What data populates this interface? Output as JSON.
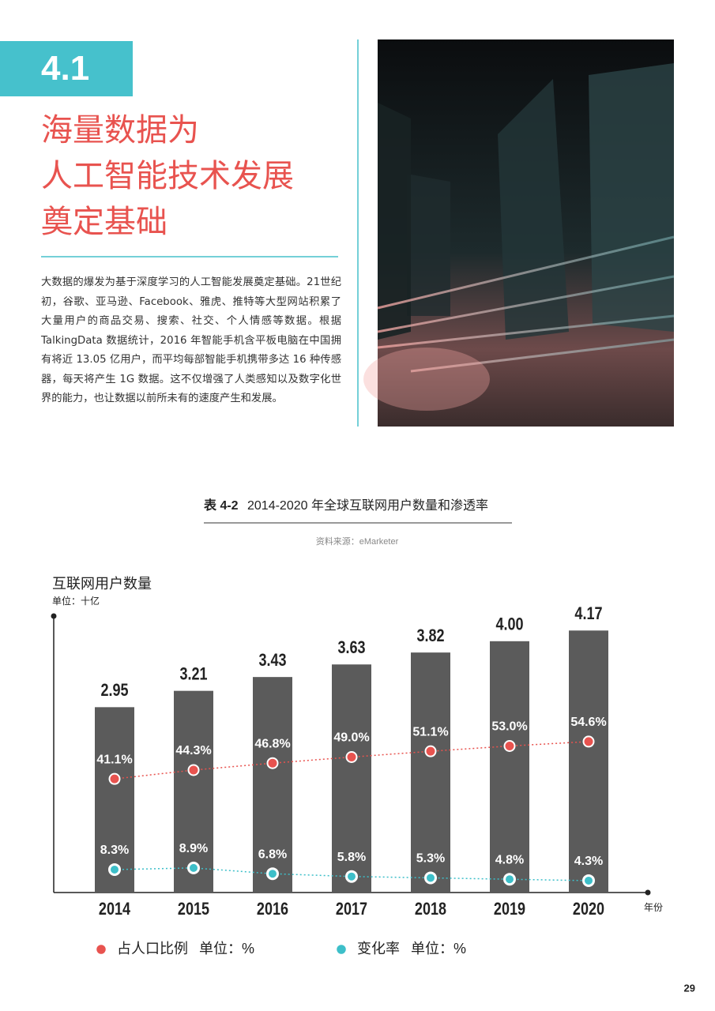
{
  "header": {
    "section": "4.1",
    "title_lines": [
      "海量数据为",
      "人工智能技术发展",
      "奠定基础"
    ]
  },
  "paragraph": "大数据的爆发为基于深度学习的人工智能发展奠定基础。21世纪初，谷歌、亚马逊、Facebook、雅虎、推特等大型网站积累了大量用户的商品交易、搜索、社交、个人情感等数据。根据 TalkingData 数据统计，2016 年智能手机含平板电脑在中国拥有将近 13.05 亿用户，而平均每部智能手机携带多达 16 种传感器，每天将产生 1G 数据。这不仅增强了人类感知以及数字化世界的能力，也让数据以前所未有的速度产生和发展。",
  "table_caption": {
    "label": "表 4-2",
    "title": "2014-2020 年全球互联网用户数量和渗透率"
  },
  "source": "资料来源：eMarketer",
  "chart_data": {
    "type": "bar",
    "title": "互联网用户数量",
    "unit": "单位：十亿",
    "x_label": "年份",
    "categories": [
      "2014",
      "2015",
      "2016",
      "2017",
      "2018",
      "2019",
      "2020"
    ],
    "values": [
      2.95,
      3.21,
      3.43,
      3.63,
      3.82,
      4.0,
      4.17
    ],
    "value_labels": [
      "2.95",
      "3.21",
      "3.43",
      "3.63",
      "3.82",
      "4.00",
      "4.17"
    ],
    "color": "#5b5b5b",
    "ylim": [
      0,
      4.4
    ],
    "y2lim": [
      0,
      100
    ],
    "legend_unit": "单位：%",
    "series": [
      {
        "name": "占人口比例",
        "color": "#e8534f",
        "axis": "y2",
        "values": [
          41.1,
          44.3,
          46.8,
          49.0,
          51.1,
          53.0,
          54.6
        ],
        "value_labels": [
          "41.1%",
          "44.3%",
          "46.8%",
          "49.0%",
          "51.1%",
          "53.0%",
          "54.6%"
        ]
      },
      {
        "name": "变化率",
        "color": "#3dbfc9",
        "axis": "y2",
        "values": [
          8.3,
          8.9,
          6.8,
          5.8,
          5.3,
          4.8,
          4.3
        ],
        "value_labels": [
          "8.3%",
          "8.9%",
          "6.8%",
          "5.8%",
          "5.3%",
          "4.8%",
          "4.3%"
        ]
      }
    ]
  },
  "page_number": "29"
}
